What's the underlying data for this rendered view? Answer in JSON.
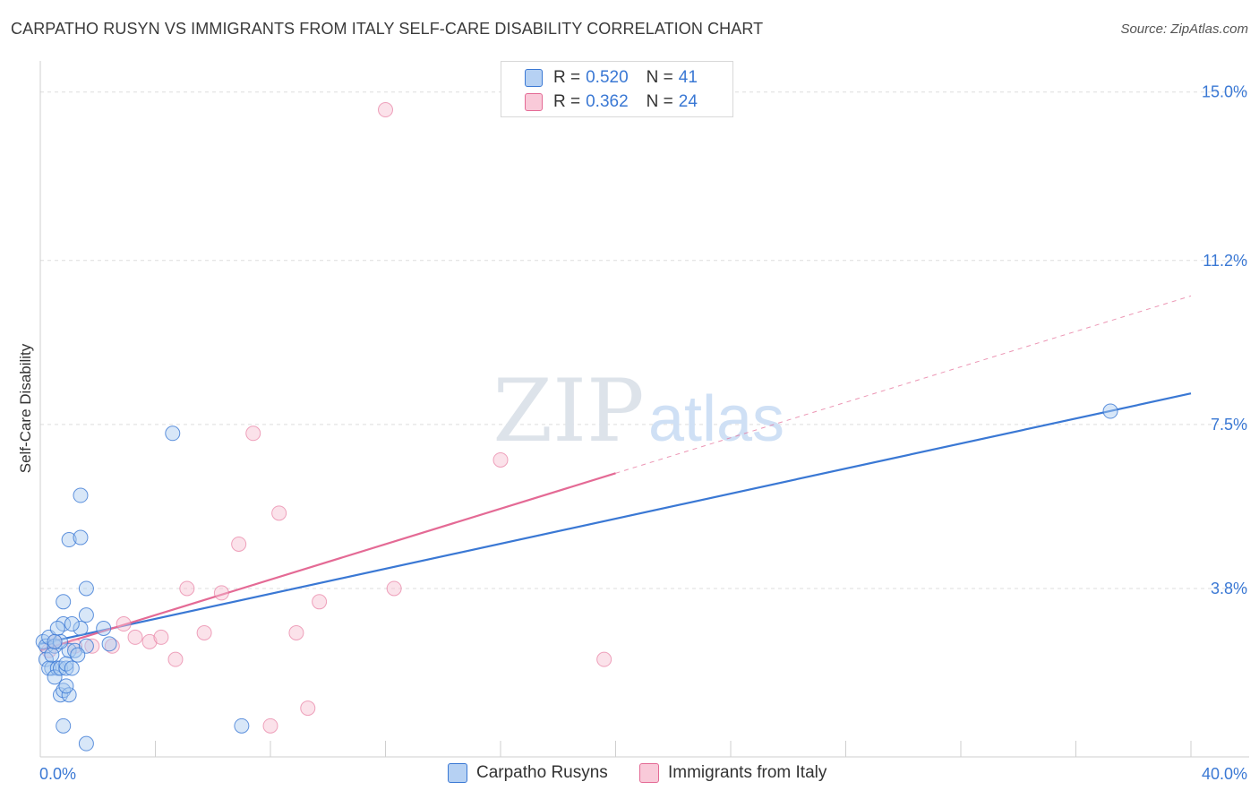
{
  "header": {
    "title": "CARPATHO RUSYN VS IMMIGRANTS FROM ITALY SELF-CARE DISABILITY CORRELATION CHART",
    "source": "Source: ZipAtlas.com"
  },
  "legend": {
    "rows": [
      {
        "r_label": "R =",
        "r_value": "0.520",
        "n_label": "N =",
        "n_value": "41"
      },
      {
        "r_label": "R =",
        "r_value": "0.362",
        "n_label": "N =",
        "n_value": "24"
      }
    ]
  },
  "watermark": {
    "zip": "ZIP",
    "atlas": "atlas"
  },
  "colors": {
    "blue": "#3a78d4",
    "blue_fill": "#a9c9f0",
    "pink": "#e46a95",
    "pink_fill": "#f7bfd0",
    "grid": "#dddddd",
    "tick_label": "#3a78d4"
  },
  "chart_data": {
    "type": "scatter",
    "title": "CARPATHO RUSYN VS IMMIGRANTS FROM ITALY SELF-CARE DISABILITY CORRELATION CHART",
    "xlabel": "",
    "ylabel": "Self-Care Disability",
    "xlim": [
      0,
      40
    ],
    "ylim": [
      0,
      15.5
    ],
    "x_tick_labels": [
      "0.0%",
      "40.0%"
    ],
    "y_ticks": [
      3.8,
      7.5,
      11.2,
      15.0
    ],
    "y_tick_labels": [
      "3.8%",
      "7.5%",
      "11.2%",
      "15.0%"
    ],
    "series": [
      {
        "name": "Carpatho Rusyns",
        "color": "#3a78d4",
        "R": 0.52,
        "N": 41,
        "points": [
          [
            0.1,
            2.6
          ],
          [
            0.2,
            2.5
          ],
          [
            0.3,
            2.7
          ],
          [
            0.2,
            2.2
          ],
          [
            0.4,
            2.0
          ],
          [
            0.5,
            2.5
          ],
          [
            0.3,
            2.0
          ],
          [
            0.6,
            2.0
          ],
          [
            0.5,
            1.8
          ],
          [
            0.7,
            2.0
          ],
          [
            0.9,
            2.0
          ],
          [
            1.0,
            2.4
          ],
          [
            0.9,
            2.1
          ],
          [
            0.8,
            3.0
          ],
          [
            1.2,
            2.4
          ],
          [
            1.6,
            2.5
          ],
          [
            0.6,
            2.9
          ],
          [
            0.7,
            2.6
          ],
          [
            0.8,
            3.5
          ],
          [
            0.7,
            1.4
          ],
          [
            0.8,
            1.5
          ],
          [
            1.0,
            1.4
          ],
          [
            0.9,
            1.6
          ],
          [
            0.8,
            0.7
          ],
          [
            1.1,
            2.0
          ],
          [
            1.3,
            2.3
          ],
          [
            1.4,
            2.9
          ],
          [
            2.2,
            2.9
          ],
          [
            1.6,
            3.2
          ],
          [
            1.6,
            3.8
          ],
          [
            1.0,
            4.9
          ],
          [
            1.4,
            4.95
          ],
          [
            1.4,
            5.9
          ],
          [
            2.4,
            2.55
          ],
          [
            4.6,
            7.3
          ],
          [
            1.6,
            0.3
          ],
          [
            7.0,
            0.7
          ],
          [
            37.2,
            7.8
          ],
          [
            0.4,
            2.3
          ],
          [
            0.5,
            2.6
          ],
          [
            1.1,
            3.0
          ]
        ],
        "trend": {
          "x0": 0,
          "y0": 2.55,
          "x1": 40,
          "y1": 8.2
        }
      },
      {
        "name": "Immigrants from Italy",
        "color": "#e46a95",
        "R": 0.362,
        "N": 24,
        "points": [
          [
            0.3,
            2.4
          ],
          [
            0.5,
            2.6
          ],
          [
            1.2,
            2.5
          ],
          [
            1.8,
            2.5
          ],
          [
            2.5,
            2.5
          ],
          [
            2.9,
            3.0
          ],
          [
            3.3,
            2.7
          ],
          [
            3.8,
            2.6
          ],
          [
            4.2,
            2.7
          ],
          [
            4.7,
            2.2
          ],
          [
            5.1,
            3.8
          ],
          [
            5.7,
            2.8
          ],
          [
            6.3,
            3.7
          ],
          [
            6.9,
            4.8
          ],
          [
            7.4,
            7.3
          ],
          [
            8.3,
            5.5
          ],
          [
            8.9,
            2.8
          ],
          [
            9.7,
            3.5
          ],
          [
            12.3,
            3.8
          ],
          [
            12.0,
            14.6
          ],
          [
            16.0,
            6.7
          ],
          [
            19.6,
            2.2
          ],
          [
            8.0,
            0.7
          ],
          [
            9.3,
            1.1
          ]
        ],
        "trend": {
          "x0": 0,
          "y0": 2.4,
          "x1": 20,
          "y1": 6.4
        },
        "trend_extrapolated": {
          "x0": 20,
          "y0": 6.4,
          "x1": 40,
          "y1": 10.4
        }
      }
    ]
  },
  "bottom_legend": {
    "items": [
      {
        "label": "Carpatho Rusyns"
      },
      {
        "label": "Immigrants from Italy"
      }
    ]
  }
}
